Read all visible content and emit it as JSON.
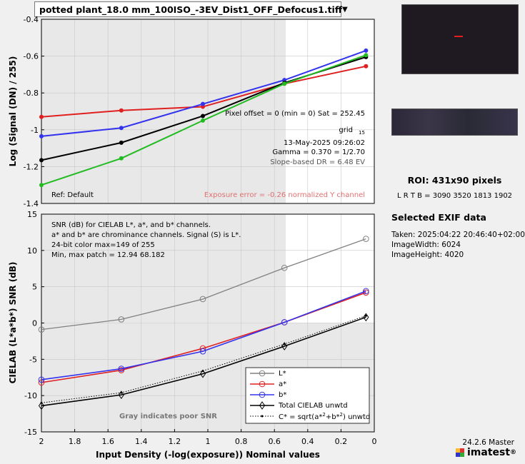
{
  "file": {
    "name": "potted plant_18.0 mm_100ISO_-3EV_Dist1_OFF_Defocus1.tiff",
    "arrow": "▼"
  },
  "roi": {
    "title": "ROI:  431x90 pixels",
    "coords": "L R  T B = 3090 3520  1813 1902"
  },
  "exif": {
    "title": "Selected EXIF data",
    "lines": [
      "Taken: 2025:04:22 20:46:40+02:00",
      "ImageWidth:  6024",
      "ImageHeight:  4020"
    ]
  },
  "version": "24.2.6 Master",
  "logo": "imatest",
  "logo_reg": "®",
  "colors": {
    "l": "#808080",
    "a": "#e02020",
    "b": "#3333ee",
    "total": "#000000",
    "g": "#22bb22",
    "gray_bg": "#e8e8e8",
    "exposure": "#e07070"
  },
  "chart_data": [
    {
      "type": "line",
      "ylabel": "Log (Signal (DN) / 255)",
      "ylim": [
        -1.4,
        -0.4
      ],
      "yticks": [
        "-0.4",
        "-0.6",
        "-0.8",
        "-1",
        "-1.2",
        "-1.4"
      ],
      "x": [
        2.0,
        1.52,
        1.03,
        0.54,
        0.05
      ],
      "series": [
        {
          "color": "red",
          "values": [
            -0.93,
            -0.895,
            -0.875,
            -0.75,
            -0.655
          ]
        },
        {
          "color": "blue",
          "values": [
            -1.035,
            -0.99,
            -0.86,
            -0.73,
            -0.57
          ]
        },
        {
          "color": "black",
          "values": [
            -1.165,
            -1.07,
            -0.925,
            -0.745,
            -0.605
          ]
        },
        {
          "color": "green",
          "values": [
            -1.3,
            -1.155,
            -0.95,
            -0.75,
            -0.595
          ]
        }
      ],
      "annotations": {
        "pixel_offset": "Pixel offset = 0  (min = 0)  Sat = 252.45",
        "grid": "grid",
        "grid_sub": "15",
        "date": "13-May-2025 09:26:02",
        "gamma": "Gamma = 0.370 = 1/2.70",
        "dr": "Slope-based DR = 6.48 EV",
        "ref": "Ref: Default",
        "exposure_error": "Exposure error = -0.26 normalized Y channel"
      }
    },
    {
      "type": "line",
      "ylabel": "CIELAB (L*a*b*)  SNR (dB)",
      "xlabel": "Input Density (-log(exposure))   Nominal values",
      "ylim": [
        -15,
        15
      ],
      "yticks": [
        "15",
        "10",
        "5",
        "0",
        "-5",
        "-10",
        "-15"
      ],
      "xlim": [
        2.0,
        0.0
      ],
      "xticks": [
        "2",
        "1.8",
        "1.6",
        "1.4",
        "1.2",
        "1",
        "0.8",
        "0.6",
        "0.4",
        "0.2",
        "0"
      ],
      "x": [
        2.0,
        1.52,
        1.03,
        0.54,
        0.05
      ],
      "series": [
        {
          "name": "L*",
          "values": [
            -0.9,
            0.5,
            3.3,
            7.6,
            11.6
          ]
        },
        {
          "name": "a*",
          "values": [
            -8.2,
            -6.5,
            -3.5,
            0.1,
            4.2
          ]
        },
        {
          "name": "b*",
          "values": [
            -7.8,
            -6.3,
            -3.9,
            0.1,
            4.4
          ]
        },
        {
          "name": "Total CIELAB unwtd",
          "values": [
            -11.4,
            -9.9,
            -7.0,
            -3.2,
            0.8
          ]
        },
        {
          "name": "C* = sqrt(a*²+b*²) unwtd",
          "values": [
            -11.0,
            -9.6,
            -6.6,
            -2.9,
            1.0
          ]
        }
      ],
      "legend_labels": {
        "l": "L*",
        "a": "a*",
        "b": "b*",
        "total": "Total CIELAB unwtd",
        "c_prefix": "C* = sqrt(a*",
        "c_sup1": "2",
        "c_mid": "+b*",
        "c_sup2": "2",
        "c_suffix": ") unwtd"
      },
      "legend_position": "bottom-right",
      "annotations": [
        "SNR (dB) for CIELAB L*, a*, and b* channels.",
        "a* and b* are chrominance channels. Signal (S) is L*.",
        "24-bit color   max=149 of 255",
        "Min, max patch = 12.94  68.182"
      ],
      "gray_note": "Gray indicates poor SNR"
    }
  ]
}
